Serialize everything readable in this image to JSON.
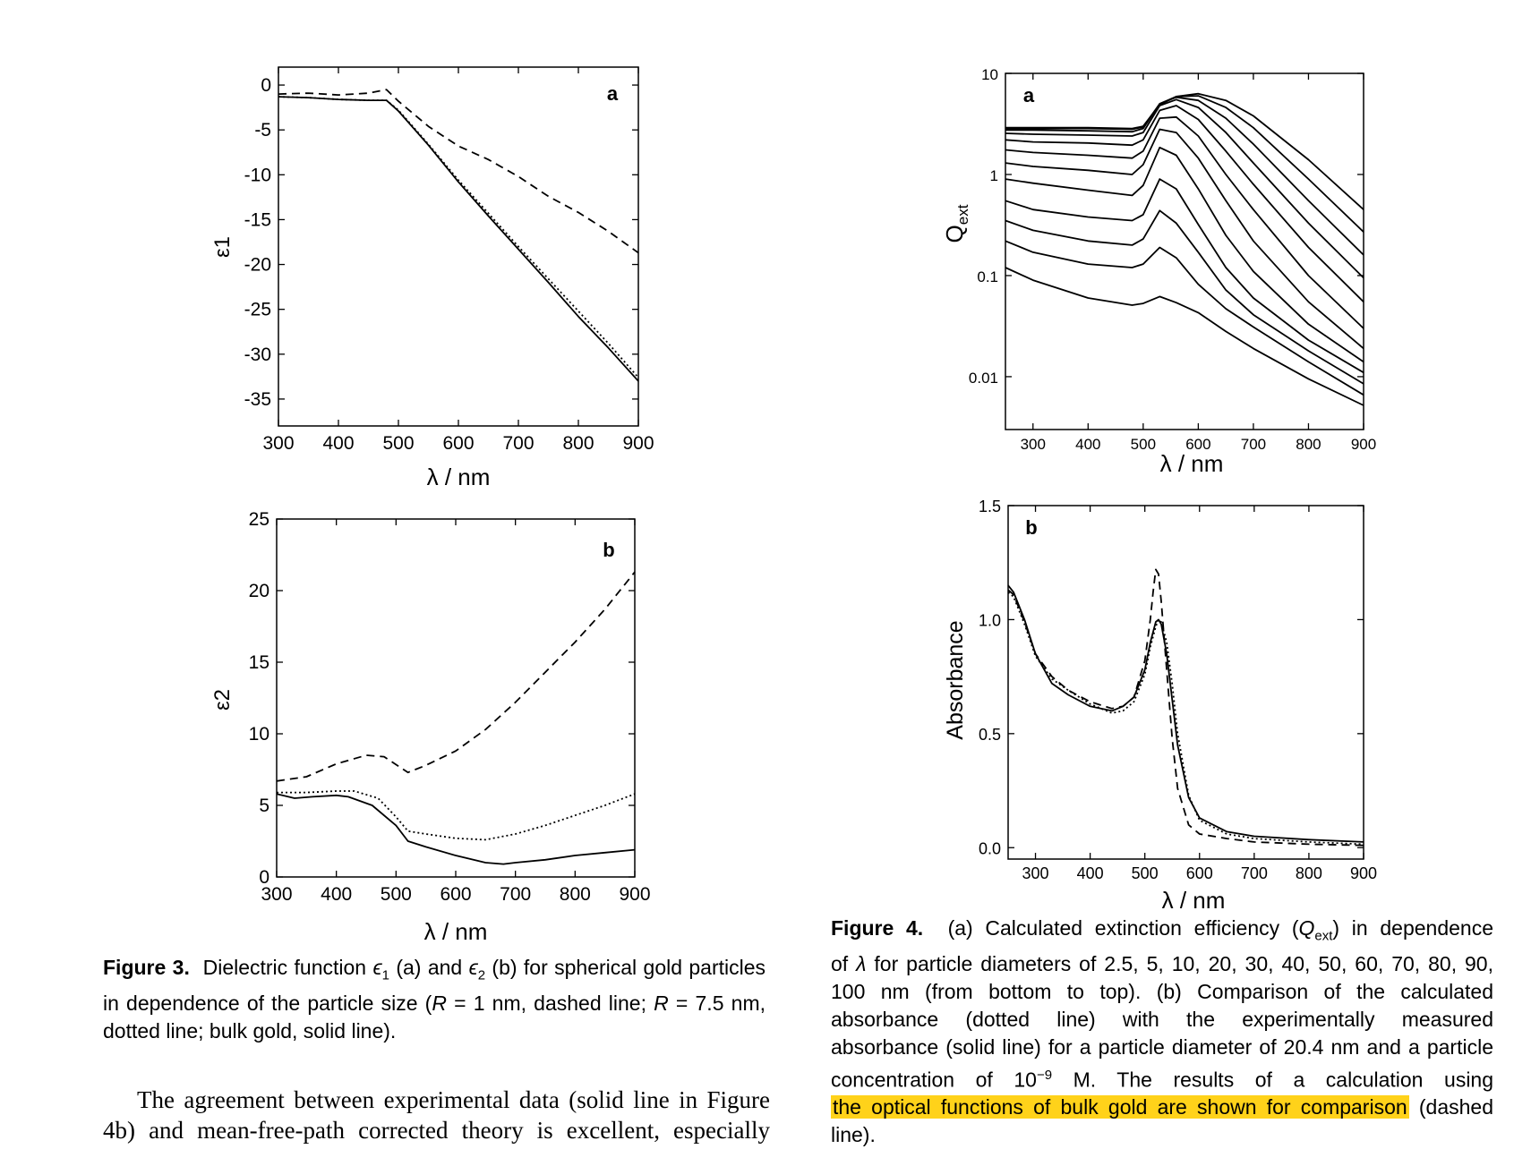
{
  "fig3": {
    "a": {
      "panel_label": "a",
      "ylabel": "ε1",
      "xlabel": "λ / nm",
      "chart_data": {
        "type": "line",
        "xlim": [
          300,
          900
        ],
        "ylim": [
          -38,
          2
        ],
        "xticks": [
          300,
          400,
          500,
          600,
          700,
          800,
          900
        ],
        "yticks": [
          0,
          -5,
          -10,
          -15,
          -20,
          -25,
          -30,
          -35
        ],
        "series": [
          {
            "style": "dashed",
            "x": [
              300,
              350,
              400,
              450,
              480,
              500,
              550,
              600,
              650,
              700,
              750,
              800,
              850,
              900
            ],
            "y": [
              -1.0,
              -0.9,
              -1.1,
              -0.9,
              -0.5,
              -1.8,
              -4.6,
              -6.8,
              -8.3,
              -10.2,
              -12.4,
              -14.2,
              -16.3,
              -18.7
            ]
          },
          {
            "style": "dotted",
            "x": [
              300,
              350,
              400,
              450,
              480,
              500,
              550,
              600,
              650,
              700,
              750,
              800,
              850,
              900
            ],
            "y": [
              -1.3,
              -1.4,
              -1.6,
              -1.7,
              -1.7,
              -2.8,
              -6.6,
              -10.6,
              -14.3,
              -18.0,
              -21.6,
              -25.2,
              -28.8,
              -32.6
            ]
          },
          {
            "style": "solid",
            "x": [
              300,
              350,
              400,
              450,
              480,
              500,
              550,
              600,
              650,
              700,
              750,
              800,
              850,
              900
            ],
            "y": [
              -1.3,
              -1.4,
              -1.6,
              -1.7,
              -1.7,
              -2.9,
              -6.7,
              -10.8,
              -14.6,
              -18.3,
              -22.0,
              -25.8,
              -29.3,
              -33.0
            ]
          }
        ]
      }
    },
    "b": {
      "panel_label": "b",
      "ylabel": "ε2",
      "xlabel": "λ / nm",
      "chart_data": {
        "type": "line",
        "xlim": [
          300,
          900
        ],
        "ylim": [
          0,
          25
        ],
        "xticks": [
          300,
          400,
          500,
          600,
          700,
          800,
          900
        ],
        "yticks": [
          0,
          5,
          10,
          15,
          20,
          25
        ],
        "series": [
          {
            "style": "dashed",
            "x": [
              300,
              350,
              400,
              450,
              480,
              520,
              550,
              600,
              650,
              700,
              750,
              800,
              850,
              900
            ],
            "y": [
              6.7,
              7.0,
              7.9,
              8.5,
              8.4,
              7.3,
              7.8,
              8.8,
              10.3,
              12.2,
              14.3,
              16.4,
              18.7,
              21.3
            ]
          },
          {
            "style": "dotted",
            "x": [
              300,
              350,
              400,
              430,
              470,
              500,
              520,
              550,
              600,
              650,
              700,
              750,
              800,
              850,
              900
            ],
            "y": [
              5.9,
              5.9,
              6.0,
              6.0,
              5.5,
              4.2,
              3.2,
              3.0,
              2.7,
              2.6,
              3.0,
              3.6,
              4.3,
              5.0,
              5.8
            ]
          },
          {
            "style": "solid",
            "x": [
              300,
              330,
              360,
              400,
              420,
              460,
              500,
              520,
              550,
              600,
              650,
              680,
              700,
              750,
              800,
              850,
              900
            ],
            "y": [
              5.8,
              5.5,
              5.6,
              5.7,
              5.6,
              5.0,
              3.6,
              2.5,
              2.1,
              1.5,
              1.0,
              0.9,
              1.0,
              1.2,
              1.5,
              1.7,
              1.9
            ]
          }
        ]
      }
    },
    "caption": {
      "label": "Figure 3.",
      "text1": "Dielectric function ",
      "eps1": "ϵ",
      "sub1": "1",
      "text2": " (a) and ",
      "eps2": "ϵ",
      "sub2": "2",
      "text3": " (b) for spherical gold particles in dependence of the particle size (",
      "r1": "R",
      "text4": " = 1 nm, dashed line; ",
      "r2": "R",
      "text5": " = 7.5 nm, dotted line; bulk gold, solid line)."
    }
  },
  "fig4": {
    "a": {
      "panel_label": "a",
      "ylabel": "Q",
      "ylabel_sub": "ext",
      "xlabel": "λ / nm",
      "chart_data": {
        "type": "line",
        "yscale": "log",
        "xlim": [
          250,
          900
        ],
        "ylim": [
          0.003,
          10
        ],
        "xticks": [
          300,
          400,
          500,
          600,
          700,
          800,
          900
        ],
        "yticks": [
          10,
          1,
          0.1,
          0.01
        ],
        "ytick_labels": [
          "10",
          "1",
          "0.1",
          "0.01"
        ],
        "x": [
          250,
          300,
          400,
          480,
          500,
          530,
          560,
          600,
          650,
          700,
          800,
          900
        ],
        "series": [
          {
            "label": "2.5 nm",
            "values": [
              0.12,
              0.09,
              0.06,
              0.051,
              0.053,
              0.062,
              0.054,
              0.043,
              0.028,
              0.019,
              0.0095,
              0.0052
            ]
          },
          {
            "label": "5 nm",
            "values": [
              0.22,
              0.17,
              0.13,
              0.12,
              0.13,
              0.19,
              0.15,
              0.082,
              0.047,
              0.031,
              0.014,
              0.0066
            ]
          },
          {
            "label": "10 nm",
            "values": [
              0.35,
              0.28,
              0.22,
              0.2,
              0.23,
              0.44,
              0.33,
              0.17,
              0.072,
              0.041,
              0.018,
              0.0085
            ]
          },
          {
            "label": "20 nm",
            "values": [
              0.55,
              0.45,
              0.38,
              0.35,
              0.4,
              0.9,
              0.72,
              0.32,
              0.12,
              0.06,
              0.023,
              0.011
            ]
          },
          {
            "label": "30 nm",
            "values": [
              0.9,
              0.82,
              0.7,
              0.62,
              0.78,
              1.85,
              1.55,
              0.72,
              0.25,
              0.11,
              0.033,
              0.014
            ]
          },
          {
            "label": "40 nm",
            "values": [
              1.3,
              1.2,
              1.1,
              1.0,
              1.25,
              2.8,
              2.6,
              1.45,
              0.55,
              0.22,
              0.055,
              0.019
            ]
          },
          {
            "label": "50 nm",
            "values": [
              1.75,
              1.65,
              1.55,
              1.45,
              1.7,
              3.6,
              3.7,
              2.4,
              1.0,
              0.45,
              0.1,
              0.03
            ]
          },
          {
            "label": "60 nm",
            "values": [
              2.2,
              2.1,
              2.05,
              1.95,
              2.2,
              4.3,
              4.8,
              3.5,
              1.7,
              0.8,
              0.19,
              0.055
            ]
          },
          {
            "label": "70 nm",
            "values": [
              2.55,
              2.5,
              2.45,
              2.4,
              2.6,
              4.8,
              5.5,
              4.6,
              2.6,
              1.3,
              0.33,
              0.095
            ]
          },
          {
            "label": "80 nm",
            "values": [
              2.75,
              2.75,
              2.7,
              2.65,
              2.85,
              5.0,
              5.8,
              5.4,
              3.6,
              2.0,
              0.55,
              0.16
            ]
          },
          {
            "label": "90 nm",
            "values": [
              2.85,
              2.85,
              2.85,
              2.8,
              2.95,
              5.0,
              5.9,
              6.0,
              4.6,
              2.9,
              0.9,
              0.27
            ]
          },
          {
            "label": "100 nm",
            "values": [
              2.9,
              2.9,
              2.9,
              2.85,
              3.0,
              4.9,
              5.9,
              6.3,
              5.4,
              3.8,
              1.4,
              0.45
            ]
          }
        ]
      }
    },
    "b": {
      "panel_label": "b",
      "ylabel": "Absorbance",
      "xlabel": "λ / nm",
      "chart_data": {
        "type": "line",
        "xlim": [
          250,
          900
        ],
        "ylim": [
          -0.05,
          1.5
        ],
        "xticks": [
          300,
          400,
          500,
          600,
          700,
          800,
          900
        ],
        "yticks": [
          0.0,
          0.5,
          1.0,
          1.5
        ],
        "ytick_labels": [
          "0.0",
          "0.5",
          "1.0",
          "1.5"
        ],
        "series": [
          {
            "style": "solid",
            "x": [
              250,
              260,
              280,
              300,
              330,
              360,
              400,
              440,
              460,
              480,
              500,
              510,
              520,
              525,
              530,
              540,
              550,
              560,
              580,
              600,
              650,
              700,
              800,
              900
            ],
            "y": [
              1.15,
              1.12,
              1.0,
              0.85,
              0.72,
              0.67,
              0.62,
              0.6,
              0.62,
              0.66,
              0.78,
              0.9,
              0.99,
              1.0,
              0.98,
              0.85,
              0.65,
              0.45,
              0.22,
              0.13,
              0.07,
              0.05,
              0.035,
              0.025
            ]
          },
          {
            "style": "dotted",
            "x": [
              250,
              260,
              280,
              300,
              330,
              360,
              400,
              440,
              460,
              480,
              500,
              510,
              520,
              525,
              530,
              540,
              550,
              560,
              580,
              600,
              650,
              700,
              800,
              900
            ],
            "y": [
              1.12,
              1.1,
              0.98,
              0.84,
              0.74,
              0.69,
              0.63,
              0.59,
              0.6,
              0.64,
              0.76,
              0.88,
              0.97,
              1.0,
              0.99,
              0.9,
              0.72,
              0.5,
              0.23,
              0.12,
              0.06,
              0.04,
              0.025,
              0.015
            ]
          },
          {
            "style": "dashed",
            "x": [
              250,
              260,
              280,
              300,
              330,
              360,
              400,
              440,
              460,
              480,
              500,
              510,
              515,
              520,
              525,
              530,
              540,
              550,
              560,
              580,
              600,
              650,
              700,
              800,
              900
            ],
            "y": [
              1.13,
              1.11,
              0.99,
              0.85,
              0.75,
              0.69,
              0.64,
              0.61,
              0.62,
              0.66,
              0.82,
              1.0,
              1.12,
              1.22,
              1.2,
              1.08,
              0.78,
              0.48,
              0.26,
              0.1,
              0.06,
              0.04,
              0.025,
              0.015,
              0.01
            ]
          }
        ]
      }
    },
    "caption": {
      "label": "Figure 4.",
      "line1a": "(a) Calculated extinction efficiency (",
      "q": "Q",
      "qsub": "ext",
      "line1b": ") in dependence",
      "line2a": "of ",
      "lambda": "λ",
      "line2b": " for particle diameters of 2.5, 5, 10, 20, 30, 40, 50, 60, 70, 80, 90,",
      "line3": "100 nm (from bottom to top). (b) Comparison of the calculated",
      "line4": "absorbance (dotted line) with the experimentally measured",
      "line5": "absorbance (solid line) for a particle diameter of 20.4 nm and a particle",
      "line6a": "concentration of 10",
      "exp": "−9",
      "line6b": " M. The results of a calculation using",
      "highlight": "the optical functions of bulk gold are shown for comparison",
      "line7b": " (dashed",
      "line8": "line)."
    }
  },
  "body": {
    "line1": "The agreement between experimental data (solid line in Figure",
    "line2": "4b) and mean-free-path corrected theory is excellent, especially"
  }
}
